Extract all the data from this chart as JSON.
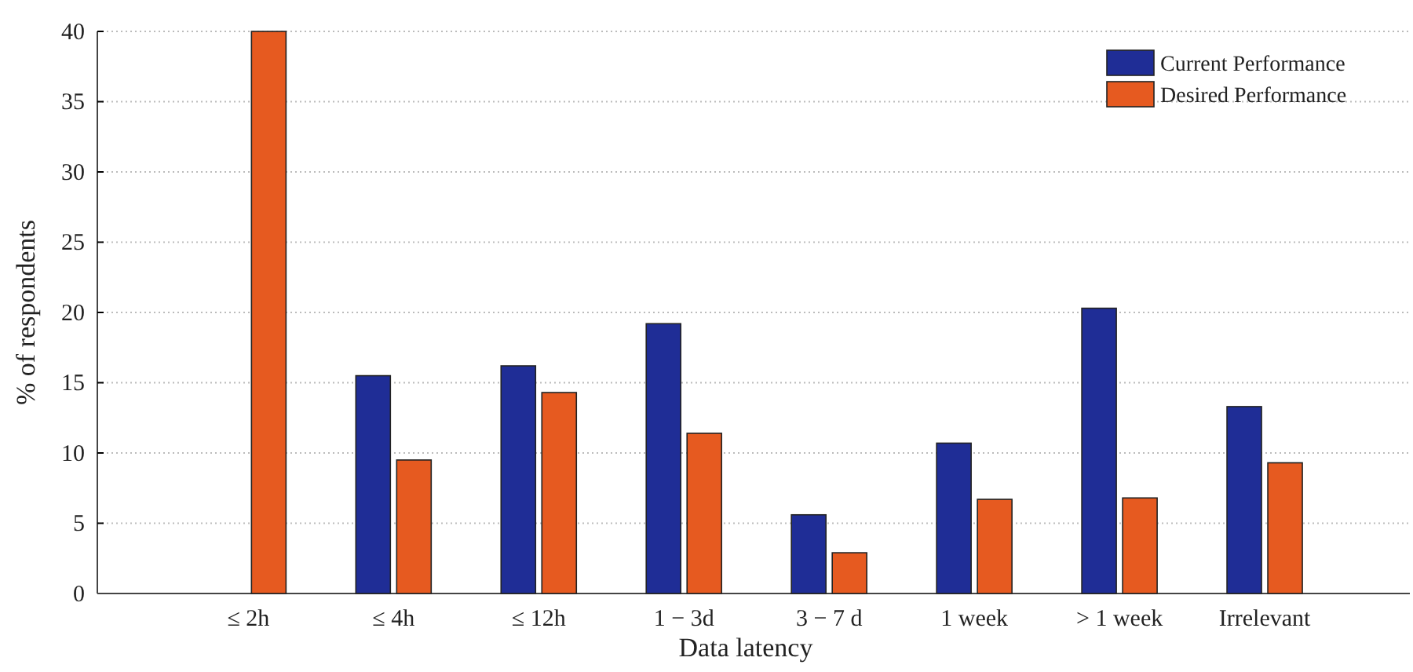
{
  "chart_data": {
    "type": "bar",
    "xlabel": "Data latency",
    "ylabel": "% of respondents",
    "categories": [
      "≤ 2h",
      "≤ 4h",
      "≤ 12h",
      "1 − 3d",
      "3 − 7 d",
      "1 week",
      "> 1 week",
      "Irrelevant"
    ],
    "series": [
      {
        "name": "Current Performance",
        "color": "#1f2d96",
        "values": [
          0,
          15.5,
          16.2,
          19.2,
          5.6,
          10.7,
          20.3,
          13.3
        ]
      },
      {
        "name": "Desired Performance",
        "color": "#e65a20",
        "values": [
          40,
          9.5,
          14.3,
          11.4,
          2.9,
          6.7,
          6.8,
          9.3
        ]
      }
    ],
    "ylim": [
      0,
      40
    ],
    "yticks": [
      0,
      5,
      10,
      15,
      20,
      25,
      30,
      35,
      40
    ],
    "grid": "y",
    "legend": "top right"
  }
}
